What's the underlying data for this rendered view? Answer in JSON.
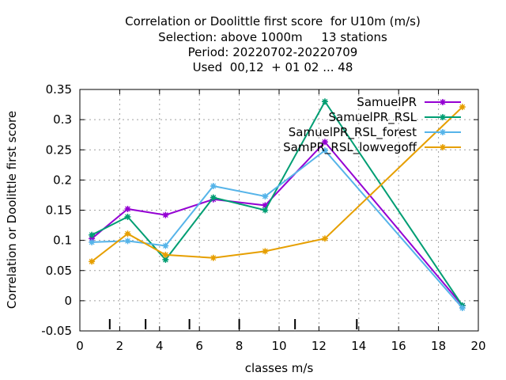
{
  "chart_data": {
    "type": "line",
    "title_lines": [
      "Correlation or Doolittle first score  for U10m (m/s)",
      "Selection: above 1000m     13 stations",
      "Period: 20220702-20220709",
      "Used  00,12  + 01 02 ... 48"
    ],
    "xlabel": "classes m/s",
    "ylabel": "Correlation or Doolittle first score",
    "xlim": [
      0,
      20
    ],
    "ylim": [
      -0.05,
      0.35
    ],
    "xticks": [
      "0",
      "2",
      "4",
      "6",
      "8",
      "10",
      "12",
      "14",
      "16",
      "18",
      "20"
    ],
    "yticks": [
      "-0.05",
      "0",
      "0.05",
      "0.1",
      "0.15",
      "0.2",
      "0.25",
      "0.3",
      "0.35"
    ],
    "grid": true,
    "legend_position": "top-right",
    "class_markers_x": [
      1.5,
      3.3,
      5.5,
      8.0,
      10.8,
      13.9
    ],
    "series": [
      {
        "name": "SamuelPR",
        "color": "#9400d3",
        "x": [
          0.6,
          2.4,
          4.3,
          6.7,
          9.3,
          12.3,
          19.2
        ],
        "y": [
          0.103,
          0.152,
          0.142,
          0.168,
          0.158,
          0.263,
          -0.008
        ]
      },
      {
        "name": "SamuelPR_RSL",
        "color": "#009e73",
        "x": [
          0.6,
          2.4,
          4.3,
          6.7,
          9.3,
          12.3,
          19.2
        ],
        "y": [
          0.109,
          0.139,
          0.068,
          0.171,
          0.15,
          0.33,
          -0.008
        ]
      },
      {
        "name": "SamuelPR_RSL_forest",
        "color": "#56b4e9",
        "x": [
          0.6,
          2.4,
          4.3,
          6.7,
          9.3,
          12.3,
          19.2
        ],
        "y": [
          0.097,
          0.099,
          0.091,
          0.19,
          0.173,
          0.249,
          -0.012
        ]
      },
      {
        "name": "SamPR_RSL_lowvegoff",
        "color": "#e69f00",
        "x": [
          0.6,
          2.4,
          4.3,
          6.7,
          9.3,
          12.3,
          19.2
        ],
        "y": [
          0.065,
          0.111,
          0.076,
          0.071,
          0.082,
          0.103,
          0.321
        ]
      }
    ]
  }
}
